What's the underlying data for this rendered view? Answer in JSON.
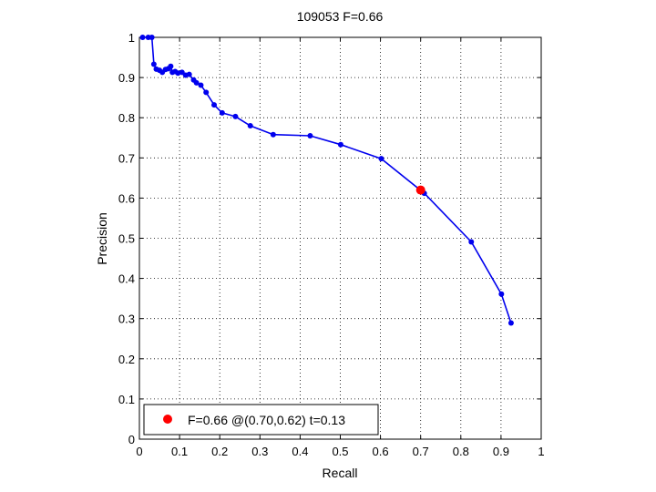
{
  "chart_data": {
    "type": "line",
    "title": "109053 F=0.66",
    "xlabel": "Recall",
    "ylabel": "Precision",
    "xlim": [
      0,
      1
    ],
    "ylim": [
      0,
      1
    ],
    "grid": true,
    "xticks": [
      "0",
      "0.1",
      "0.2",
      "0.3",
      "0.4",
      "0.5",
      "0.6",
      "0.7",
      "0.8",
      "0.9",
      "1"
    ],
    "yticks": [
      "0",
      "0.1",
      "0.2",
      "0.3",
      "0.4",
      "0.5",
      "0.6",
      "0.7",
      "0.8",
      "0.9",
      "1"
    ],
    "legend_position": "bottom-left",
    "series": [
      {
        "color": "#0000ee",
        "x": [
          0.008,
          0.022,
          0.031,
          0.036,
          0.042,
          0.05,
          0.057,
          0.065,
          0.072,
          0.078,
          0.082,
          0.089,
          0.096,
          0.106,
          0.115,
          0.124,
          0.135,
          0.142,
          0.153,
          0.166,
          0.186,
          0.206,
          0.239,
          0.276,
          0.333,
          0.425,
          0.501,
          0.602,
          0.709,
          0.826,
          0.901,
          0.925
        ],
        "y": [
          1.0,
          1.0,
          1.0,
          0.933,
          0.921,
          0.918,
          0.913,
          0.92,
          0.922,
          0.928,
          0.913,
          0.915,
          0.911,
          0.913,
          0.906,
          0.908,
          0.894,
          0.887,
          0.881,
          0.863,
          0.832,
          0.812,
          0.803,
          0.78,
          0.758,
          0.755,
          0.733,
          0.698,
          0.612,
          0.491,
          0.361,
          0.289
        ]
      }
    ],
    "best_point": {
      "recall": 0.7,
      "precision": 0.62,
      "color": "#ff0000",
      "legend_label": "F=0.66 @(0.70,0.62) t=0.13"
    }
  }
}
